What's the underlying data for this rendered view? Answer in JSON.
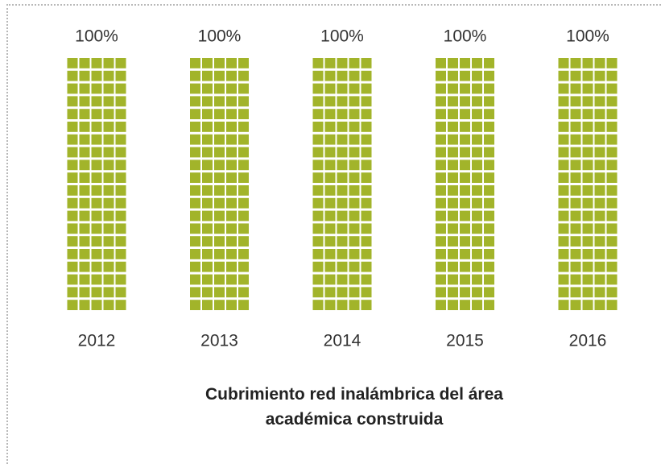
{
  "chart_data": {
    "type": "waffle",
    "title": "Cubrimiento red inalámbrica del área académica construida",
    "categories": [
      "2012",
      "2013",
      "2014",
      "2015",
      "2016"
    ],
    "values": [
      100,
      100,
      100,
      100,
      100
    ],
    "value_labels": [
      "100%",
      "100%",
      "100%",
      "100%",
      "100%"
    ],
    "color": "#a2b42a"
  }
}
